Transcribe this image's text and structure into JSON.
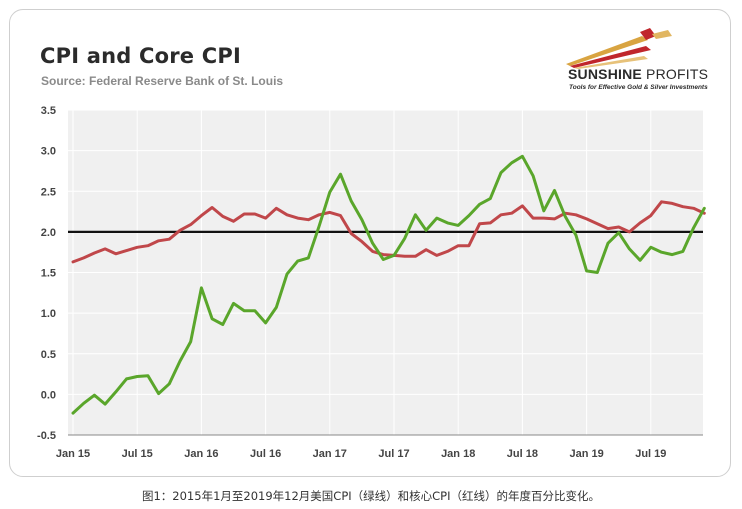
{
  "header": {
    "title": "CPI and Core CPI",
    "source": "Source: Federal Reserve Bank of St. Louis"
  },
  "logo": {
    "name_part1": "SUNSHINE",
    "name_part2": " PROFITS",
    "tagline": "Tools for Effective Gold & Silver Investments",
    "colors": {
      "accent": "#c0262c",
      "gold": "#d9a441",
      "dark": "#2b2b2b"
    }
  },
  "caption": "图1：2015年1月至2019年12月美国CPI（绿线）和核心CPI（红线）的年度百分比变化。",
  "chart_data": {
    "type": "line",
    "title": "CPI and Core CPI",
    "xlabel": "",
    "ylabel": "",
    "ylim": [
      -0.5,
      3.5
    ],
    "yticks": [
      "3.5",
      "3.0",
      "2.5",
      "2.0",
      "1.5",
      "1.0",
      "0.5",
      "0.0",
      "-0.5"
    ],
    "ytick_values": [
      3.5,
      3.0,
      2.5,
      2.0,
      1.5,
      1.0,
      0.5,
      0.0,
      -0.5
    ],
    "xticks": [
      "Jan 15",
      "Jul 15",
      "Jan 16",
      "Jul 16",
      "Jan 17",
      "Jul 17",
      "Jan 18",
      "Jul 18",
      "Jan 19",
      "Jul 19"
    ],
    "xtick_index": [
      0,
      6,
      12,
      18,
      24,
      30,
      36,
      42,
      48,
      54
    ],
    "grid": true,
    "months": 60,
    "reference_line": {
      "value": 2.0,
      "color": "#111111"
    },
    "series": [
      {
        "name": "CPI",
        "color": "#5aa62b",
        "values": [
          -0.23,
          -0.11,
          -0.01,
          -0.12,
          0.03,
          0.19,
          0.22,
          0.23,
          0.01,
          0.13,
          0.41,
          0.65,
          1.31,
          0.93,
          0.86,
          1.12,
          1.03,
          1.03,
          0.88,
          1.07,
          1.48,
          1.64,
          1.68,
          2.07,
          2.49,
          2.71,
          2.38,
          2.15,
          1.86,
          1.66,
          1.71,
          1.92,
          2.21,
          2.02,
          2.17,
          2.11,
          2.08,
          2.2,
          2.34,
          2.41,
          2.73,
          2.85,
          2.93,
          2.69,
          2.26,
          2.51,
          2.19,
          1.96,
          1.52,
          1.5,
          1.86,
          1.99,
          1.79,
          1.65,
          1.81,
          1.75,
          1.72,
          1.76,
          2.05,
          2.29
        ]
      },
      {
        "name": "Core CPI",
        "color": "#c0474a",
        "values": [
          1.63,
          1.68,
          1.74,
          1.79,
          1.73,
          1.77,
          1.81,
          1.83,
          1.89,
          1.91,
          2.02,
          2.09,
          2.2,
          2.3,
          2.19,
          2.13,
          2.22,
          2.22,
          2.17,
          2.29,
          2.21,
          2.17,
          2.15,
          2.21,
          2.24,
          2.2,
          1.98,
          1.88,
          1.76,
          1.72,
          1.71,
          1.7,
          1.7,
          1.78,
          1.71,
          1.76,
          1.83,
          1.83,
          2.1,
          2.11,
          2.21,
          2.23,
          2.32,
          2.17,
          2.17,
          2.16,
          2.23,
          2.21,
          2.16,
          2.1,
          2.04,
          2.06,
          2.0,
          2.11,
          2.2,
          2.37,
          2.35,
          2.31,
          2.29,
          2.23
        ]
      }
    ]
  }
}
